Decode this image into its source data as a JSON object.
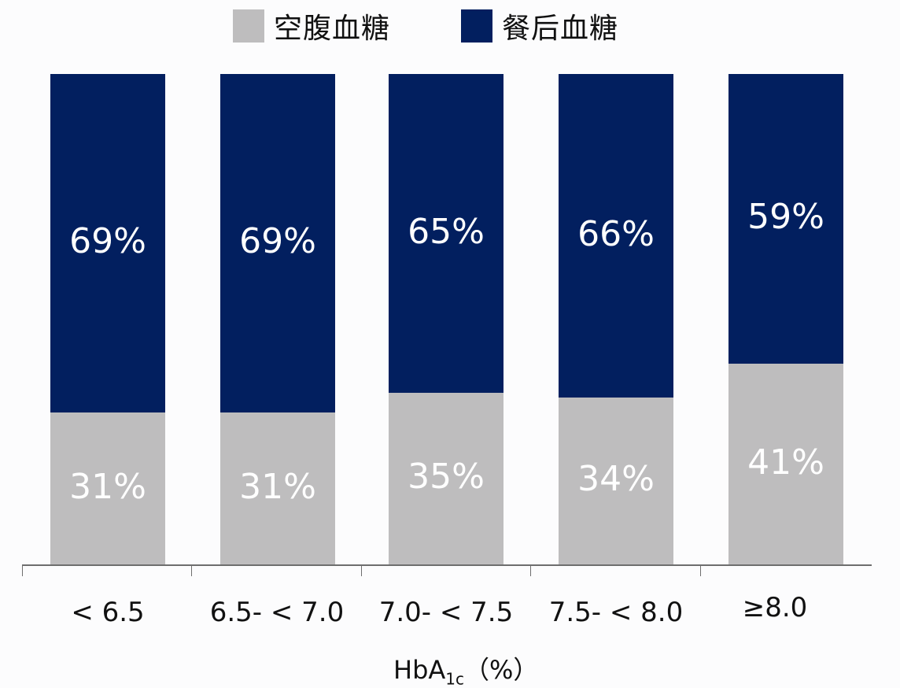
{
  "legend": {
    "items": [
      {
        "label": "空腹血糖",
        "color": "#bebdbe"
      },
      {
        "label": "餐后血糖",
        "color": "#021f5f"
      }
    ]
  },
  "axis": {
    "xlabel_main": "HbA",
    "xlabel_sub": "1c",
    "xlabel_unit": "（%）"
  },
  "chart_data": {
    "type": "bar",
    "stacked": true,
    "percent_stacked": true,
    "title": "",
    "xlabel": "HbA1c（%）",
    "ylabel": "",
    "ylim": [
      0,
      100
    ],
    "grid": false,
    "legend_position": "top",
    "categories": [
      "< 6.5",
      "6.5- < 7.0",
      "7.0- < 7.5",
      "7.5- < 8.0",
      "≥8.0"
    ],
    "series": [
      {
        "name": "空腹血糖",
        "color": "#bebdbe",
        "values": [
          31,
          31,
          35,
          34,
          41
        ],
        "labels": [
          "31%",
          "31%",
          "35%",
          "34%",
          "41%"
        ]
      },
      {
        "name": "餐后血糖",
        "color": "#021f5f",
        "values": [
          69,
          69,
          65,
          66,
          59
        ],
        "labels": [
          "69%",
          "69%",
          "65%",
          "66%",
          "59%"
        ]
      }
    ]
  }
}
